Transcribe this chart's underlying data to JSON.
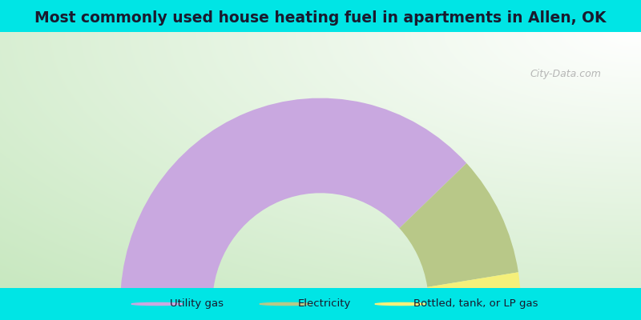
{
  "title": "Most commonly used house heating fuel in apartments in Allen, OK",
  "title_fontsize": 13.5,
  "bg_outer": "#00e5e5",
  "segments": [
    {
      "label": "Utility gas",
      "value": 76,
      "color": "#c9a8e0"
    },
    {
      "label": "Electricity",
      "value": 19,
      "color": "#b8c888"
    },
    {
      "label": "Bottled, tank, or LP gas",
      "value": 5,
      "color": "#f5f07a"
    }
  ],
  "watermark": "City-Data.com",
  "legend_marker_colors": [
    "#d4a8e8",
    "#c8d09a",
    "#f5f07a"
  ]
}
